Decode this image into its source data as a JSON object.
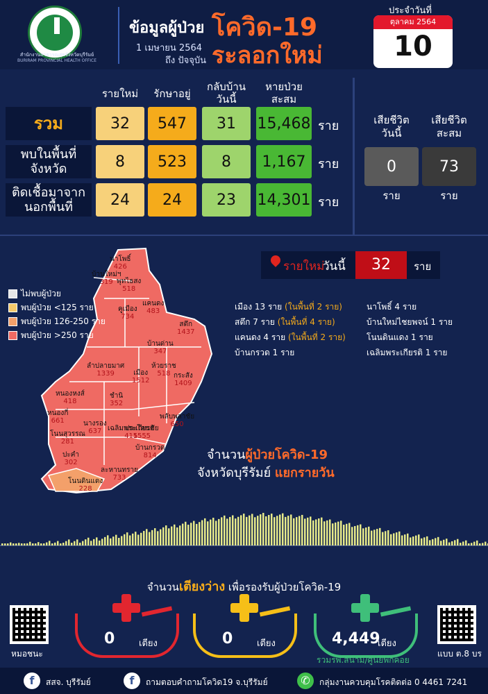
{
  "header": {
    "org_line1": "สำนักงานสาธารณสุขจังหวัดบุรีรัมย์",
    "org_line2": "BURIRAM PROVINCIAL HEALTH OFFICE",
    "title_prefix": "ข้อมูลผู้ป่วย",
    "title_disease": "โควิด-19",
    "title_wave": "ระลอกใหม่",
    "date_from": "1 เมษายน 2564",
    "date_to": "ถึง ปัจจุบัน",
    "calendar_label": "ประจำวันที่",
    "calendar_month": "ตุลาคม 2564",
    "calendar_day": "10"
  },
  "table": {
    "columns": [
      "รายใหม่",
      "รักษาอยู่",
      "กลับบ้าน\nวันนี้",
      "หายป่วย\nสะสม"
    ],
    "unit": "ราย",
    "rows": [
      {
        "label": "รวม",
        "values": [
          "32",
          "547",
          "31",
          "15,468"
        ]
      },
      {
        "label": "พบในพื้นที่\nจังหวัด",
        "values": [
          "8",
          "523",
          "8",
          "1,167"
        ]
      },
      {
        "label": "ติดเชื้อมาจาก\nนอกพื้นที่",
        "values": [
          "24",
          "24",
          "23",
          "14,301"
        ]
      }
    ]
  },
  "deaths": {
    "today_label": "เสียชีวิต\nวันนี้",
    "total_label": "เสียชีวิต\nสะสม",
    "today": "0",
    "total": "73",
    "unit": "ราย"
  },
  "legend": [
    {
      "label": "ไม่พบผู้ป่วย",
      "color": "#e6e6e6"
    },
    {
      "label": "พบผู้ป่วย <125 ราย",
      "color": "#f5c96a"
    },
    {
      "label": "พบผู้ป่วย 126-250 ราย",
      "color": "#f3a06a"
    },
    {
      "label": "พบผู้ป่วย >250 ราย",
      "color": "#ef6a63"
    }
  ],
  "new_today": {
    "label_red": "รายใหม่",
    "label_white": "วันนี้",
    "value": "32",
    "unit": "ราย"
  },
  "daily_left": [
    {
      "text": "เมือง 13 ราย",
      "note": "(ในพื้นที่ 2 ราย)"
    },
    {
      "text": "สตึก 7 ราย",
      "note": "(ในพื้นที่ 4 ราย)"
    },
    {
      "text": "แคนดง 4 ราย",
      "note": "(ในพื้นที่ 2 ราย)"
    },
    {
      "text": "บ้านกรวด 1 ราย",
      "note": ""
    }
  ],
  "daily_right": [
    "นาโพธิ์ 4 ราย",
    "บ้านใหม่ไชยพจน์ 1 ราย",
    "โนนดินแดง 1 ราย",
    "เฉลิมพระเกียรติ 1 ราย"
  ],
  "districts": [
    {
      "name": "นาโพธิ์",
      "value": "426"
    },
    {
      "name": "บ้านใหม่ฯ",
      "value": "319"
    },
    {
      "name": "พุทไธสง",
      "value": "518"
    },
    {
      "name": "คูเมือง",
      "value": "734"
    },
    {
      "name": "แคนดง",
      "value": "483"
    },
    {
      "name": "สตึก",
      "value": "1437"
    },
    {
      "name": "บ้านด่าน",
      "value": "347"
    },
    {
      "name": "ลำปลายมาศ",
      "value": "1339"
    },
    {
      "name": "เมือง",
      "value": "1512"
    },
    {
      "name": "ห้วยราช",
      "value": "518"
    },
    {
      "name": "กระสัง",
      "value": "1409"
    },
    {
      "name": "หนองหงส์",
      "value": "418"
    },
    {
      "name": "ชำนิ",
      "value": "352"
    },
    {
      "name": "หนองกี่",
      "value": "661"
    },
    {
      "name": "พลับพลาชัย",
      "value": "650"
    },
    {
      "name": "นางรอง",
      "value": "637"
    },
    {
      "name": "เฉลิมพระเกียรติ",
      "value": "415"
    },
    {
      "name": "ประโคนชัย",
      "value": "1555"
    },
    {
      "name": "โนนสุวรรณ",
      "value": "281"
    },
    {
      "name": "ปะคำ",
      "value": "302"
    },
    {
      "name": "บ้านกรวด",
      "value": "814"
    },
    {
      "name": "ละหานทราย",
      "value": "733"
    },
    {
      "name": "โนนดินแดง",
      "value": "228"
    }
  ],
  "caption": {
    "line1_prefix": "จำนวน",
    "line1_hl": "ผู้ป่วยโควิด-19",
    "line2_prefix": "จังหวัดบุรีรัมย์",
    "line2_hl": "แยกรายวัน"
  },
  "beds": {
    "title_prefix": "จำนวน",
    "title_hl": "เตียงว่าง",
    "title_suffix": "เพื่อรองรับผู้ป่วยโควิด-19",
    "items": [
      {
        "value": "0",
        "unit": "เตียง",
        "color": "#e2262f",
        "note": ""
      },
      {
        "value": "0",
        "unit": "เตียง",
        "color": "#f6bf18",
        "note": ""
      },
      {
        "value": "4,449",
        "unit": "เตียง",
        "color": "#3fbf7a",
        "note": "รวมรพ.สนาม/ศูนย์พักคอย"
      }
    ],
    "qr_left_label": "หมอชนะ",
    "qr_right_label": "แบบ ต.8 บร"
  },
  "footer": [
    {
      "icon": "facebook-icon",
      "text": "สสจ. บุรีรัมย์"
    },
    {
      "icon": "facebook-icon",
      "text": "ถามตอบคำถามโควิด19 จ.บุรีรัมย์"
    },
    {
      "icon": "phone-icon",
      "text": "กลุ่มงานควบคุมโรคติดต่อ 0 4461 7241"
    }
  ]
}
